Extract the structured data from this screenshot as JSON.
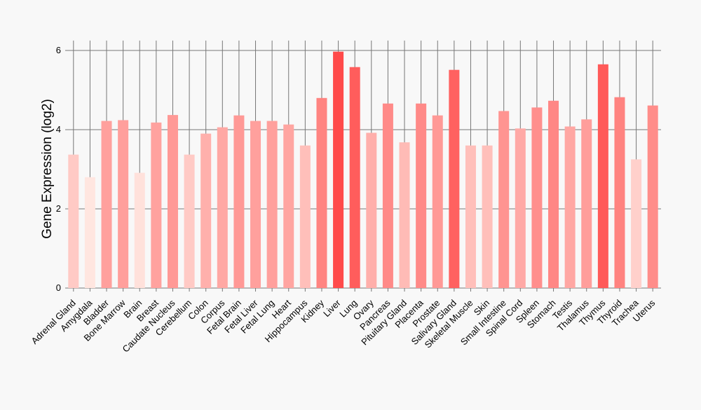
{
  "chart_data": {
    "type": "bar",
    "title": "",
    "xlabel": "",
    "ylabel": "Gene Expression (log2)",
    "ylim": [
      0,
      6.25
    ],
    "yticks": [
      0,
      2,
      4,
      6
    ],
    "grid": true,
    "categories": [
      "Adrenal Gland",
      "Amygdala",
      "Bladder",
      "Bone Marrow",
      "Brain",
      "Breast",
      "Caudate Nucleus",
      "Cerebellum",
      "Colon",
      "Corpus",
      "Fetal Brain",
      "Fetal Liver",
      "Fetal Lung",
      "Heart",
      "Hippocampus",
      "Kidney",
      "Liver",
      "Lung",
      "Ovary",
      "Pancreas",
      "Pituitary Gland",
      "Placenta",
      "Prostate",
      "Salivary Gland",
      "Skeletal Muscle",
      "Skin",
      "Small Intestine",
      "Spinal Cord",
      "Spleen",
      "Stomach",
      "Testis",
      "Thalamus",
      "Thymus",
      "Thyroid",
      "Trachea",
      "Uterus"
    ],
    "values": [
      3.37,
      2.8,
      4.22,
      4.24,
      2.91,
      4.18,
      4.37,
      3.37,
      3.9,
      4.06,
      4.36,
      4.22,
      4.22,
      4.13,
      3.6,
      4.8,
      5.97,
      5.58,
      3.92,
      4.66,
      3.68,
      4.66,
      4.36,
      5.51,
      3.6,
      3.6,
      4.47,
      4.03,
      4.56,
      4.73,
      4.08,
      4.26,
      5.65,
      4.82,
      3.25,
      4.61
    ]
  },
  "colors": {
    "background": "#f8f8f8",
    "grid": "#777777",
    "low": "#ffe6e0",
    "high": "#ff4a4a"
  }
}
